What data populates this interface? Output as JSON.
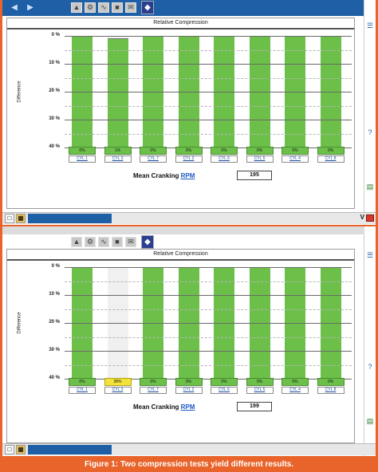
{
  "tests": [
    {
      "panel_title": "Relative Compression",
      "ylabel": "Difference",
      "yticks": [
        "0 %",
        "10 %",
        "20 %",
        "30 %",
        "40 %"
      ],
      "rpm_label": "Mean Cranking",
      "rpm_link": "RPM",
      "rpm_value": "195",
      "cylinders": [
        {
          "label": "CYL 1",
          "value": "0%",
          "pct": 0
        },
        {
          "label": "CYL 3",
          "value": "1%",
          "pct": 1
        },
        {
          "label": "CYL 7",
          "value": "0%",
          "pct": 0
        },
        {
          "label": "CYL 2",
          "value": "0%",
          "pct": 0
        },
        {
          "label": "CYL 6",
          "value": "0%",
          "pct": 0
        },
        {
          "label": "CYL 5",
          "value": "0%",
          "pct": 0
        },
        {
          "label": "CYL 4",
          "value": "0%",
          "pct": 0
        },
        {
          "label": "CYL 8",
          "value": "0%",
          "pct": 0
        }
      ]
    },
    {
      "panel_title": "Relative Compression",
      "ylabel": "Difference",
      "yticks": [
        "0 %",
        "10 %",
        "20 %",
        "30 %",
        "40 %"
      ],
      "rpm_label": "Mean Cranking",
      "rpm_link": "RPM",
      "rpm_value": "199",
      "cylinders": [
        {
          "label": "CYL 1",
          "value": "0%",
          "pct": 0
        },
        {
          "label": "CYL 3",
          "value": "38%",
          "pct": 38
        },
        {
          "label": "CYL 7",
          "value": "0%",
          "pct": 0
        },
        {
          "label": "CYL 2",
          "value": "0%",
          "pct": 0
        },
        {
          "label": "CYL 6",
          "value": "0%",
          "pct": 0
        },
        {
          "label": "CYL 5",
          "value": "0%",
          "pct": 0
        },
        {
          "label": "CYL 4",
          "value": "0%",
          "pct": 0
        },
        {
          "label": "CYL 8",
          "value": "0%",
          "pct": 0
        }
      ]
    }
  ],
  "caption": "Figure 1:  Two compression tests yield different results.",
  "window_label": "V",
  "colors": {
    "bar": "#6cc04a",
    "highlight": "#f2e23a",
    "toolbar": "#1e5fa6",
    "frame": "#e8642a"
  },
  "icons": {
    "toolbar": [
      "back-arrow-icon",
      "forward-arrow-icon",
      "car-icon",
      "engine-icon",
      "scope-icon",
      "print-icon",
      "mail-icon",
      "shield-badge-icon"
    ],
    "sidebar": [
      "list-icon",
      "help-icon",
      "document-icon"
    ],
    "taskbar": [
      "file-icon",
      "grid-icon",
      "vehicle-icon",
      "battery-icon"
    ]
  }
}
